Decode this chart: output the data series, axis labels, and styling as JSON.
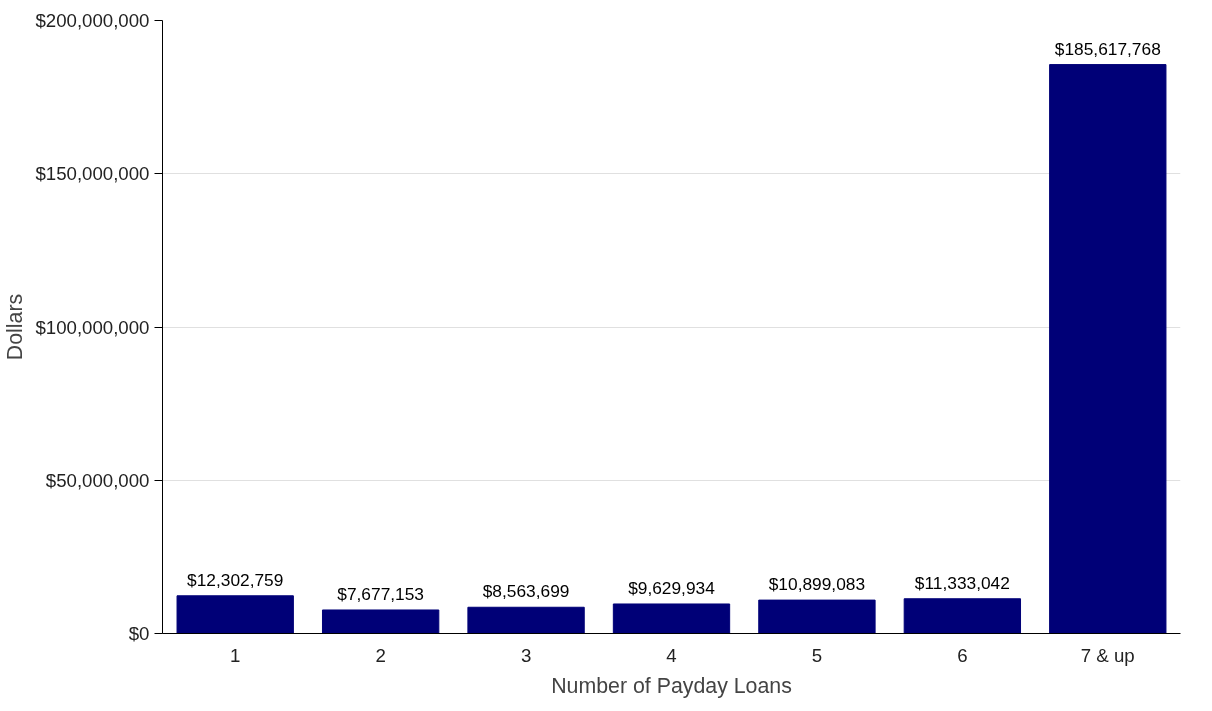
{
  "chart_data": {
    "type": "bar",
    "xlabel": "Number of Payday Loans",
    "ylabel": "Dollars",
    "categories": [
      "1",
      "2",
      "3",
      "4",
      "5",
      "6",
      "7 & up"
    ],
    "values": [
      12302759,
      7677153,
      8563699,
      9629934,
      10899083,
      11333042,
      185617768
    ],
    "value_labels": [
      "$12,302,759",
      "$7,677,153",
      "$8,563,699",
      "$9,629,934",
      "$10,899,083",
      "$11,333,042",
      "$185,617,768"
    ],
    "color": "#000077",
    "ylim": [
      0,
      200000000
    ],
    "yticks": [
      {
        "value": 0,
        "label": "$0"
      },
      {
        "value": 50000000,
        "label": "$50,000,000"
      },
      {
        "value": 100000000,
        "label": "$100,000,000"
      },
      {
        "value": 150000000,
        "label": "$150,000,000"
      },
      {
        "value": 200000000,
        "label": "$200,000,000"
      }
    ],
    "grid": "y"
  }
}
